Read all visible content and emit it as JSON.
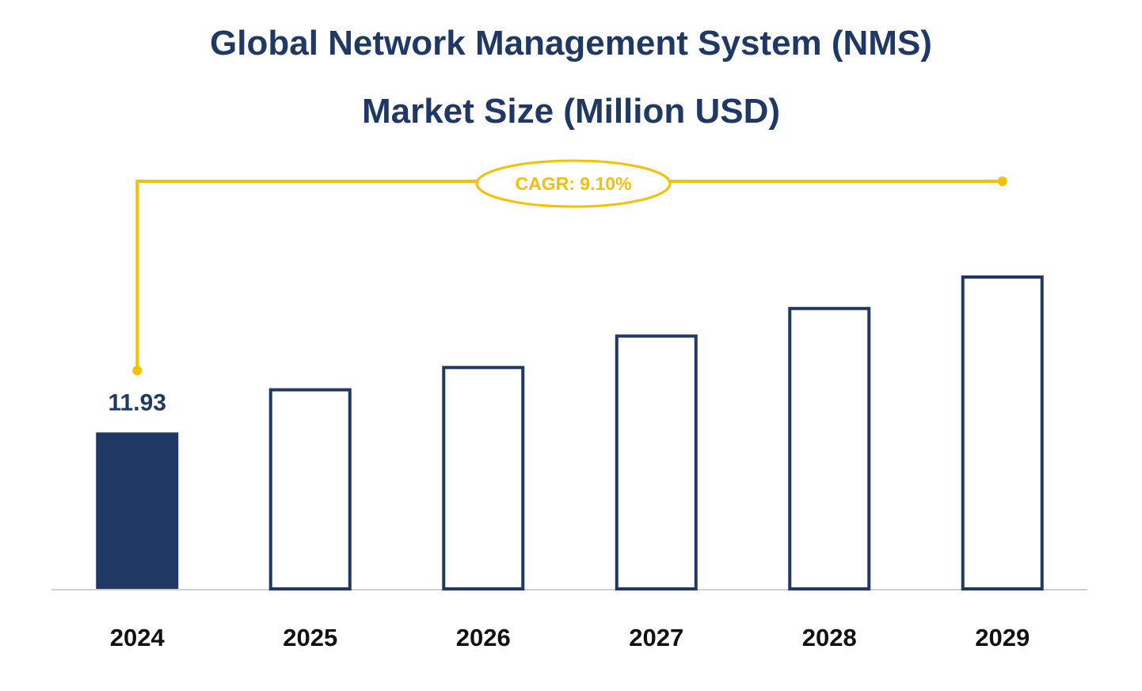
{
  "chart_data": {
    "type": "bar",
    "title": "Global Network Management System (NMS) Market Size (Million USD)",
    "annotation": "CAGR: 9.10%",
    "categories": [
      "2024",
      "2025",
      "2026",
      "2027",
      "2028",
      "2029"
    ],
    "values": [
      11.93,
      15.3,
      17.0,
      19.4,
      21.5,
      23.9
    ],
    "color": "#1f3864",
    "annotation_color": "#f5c000"
  }
}
